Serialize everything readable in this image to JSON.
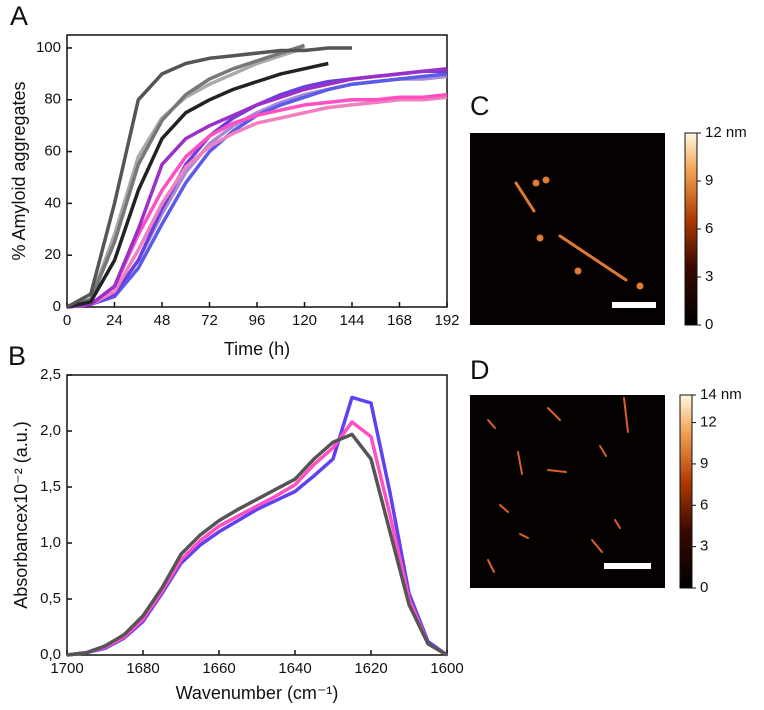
{
  "chart_data": [
    {
      "type": "line",
      "label": "A",
      "x_label": "Time (h)",
      "y_label": "% Amyloid aggregates",
      "x": [
        0,
        12,
        24,
        36,
        48,
        60,
        72,
        84,
        96,
        108,
        120,
        132,
        144,
        156,
        168,
        180,
        192
      ],
      "xlim": [
        0,
        192
      ],
      "xticks": [
        0,
        24,
        48,
        72,
        96,
        120,
        144,
        168,
        192
      ],
      "ylim": [
        0,
        105
      ],
      "yticks": [
        0,
        20,
        40,
        60,
        80,
        100
      ],
      "series": [
        {
          "color": "#a98ad8",
          "values": [
            0,
            1,
            5,
            18,
            36,
            52,
            63,
            70,
            75,
            79,
            82,
            84,
            86,
            87,
            88,
            88,
            89
          ]
        },
        {
          "color": "#5b5be8",
          "values": [
            0,
            1,
            4,
            15,
            32,
            48,
            60,
            68,
            74,
            78,
            81,
            84,
            86,
            87,
            88,
            89,
            90
          ]
        },
        {
          "color": "#6a3fe0",
          "values": [
            0,
            1,
            5,
            18,
            38,
            55,
            66,
            73,
            78,
            82,
            85,
            87,
            88,
            89,
            90,
            91,
            91
          ]
        },
        {
          "color": "#f080c0",
          "values": [
            0,
            1,
            6,
            22,
            40,
            54,
            62,
            67,
            71,
            73,
            75,
            77,
            78,
            79,
            80,
            80,
            81
          ]
        },
        {
          "color": "#ff4fc0",
          "values": [
            0,
            1,
            8,
            28,
            45,
            58,
            66,
            71,
            74,
            76,
            78,
            79,
            80,
            80,
            81,
            81,
            82
          ]
        },
        {
          "color": "#9b30c8",
          "values": [
            0,
            1,
            8,
            30,
            55,
            65,
            70,
            74,
            78,
            81,
            84,
            86,
            88,
            89,
            90,
            91,
            92
          ]
        },
        {
          "color": "#aaaaaa",
          "values": [
            0,
            3,
            28,
            58,
            73,
            81,
            86,
            90,
            94,
            97,
            100,
            null,
            null,
            null,
            null,
            null,
            null
          ]
        },
        {
          "color": "#777777",
          "values": [
            0,
            3,
            25,
            55,
            72,
            82,
            88,
            92,
            95,
            98,
            101,
            null,
            null,
            null,
            null,
            null,
            null
          ]
        },
        {
          "color": "#222222",
          "values": [
            0,
            2,
            18,
            45,
            65,
            75,
            80,
            84,
            87,
            90,
            92,
            94,
            null,
            null,
            null,
            null,
            null
          ]
        },
        {
          "color": "#555555",
          "values": [
            0,
            5,
            40,
            80,
            90,
            94,
            96,
            97,
            98,
            99,
            99,
            100,
            100,
            null,
            null,
            null,
            null
          ]
        }
      ]
    },
    {
      "type": "line",
      "label": "B",
      "x_label": "Wavenumber (cm⁻¹)",
      "y_label": "Absorbancex10⁻² (a.u.)",
      "x": [
        1700,
        1695,
        1690,
        1685,
        1680,
        1675,
        1670,
        1665,
        1660,
        1655,
        1650,
        1645,
        1640,
        1635,
        1630,
        1625,
        1620,
        1615,
        1610,
        1605,
        1600
      ],
      "xlim": [
        1700,
        1600
      ],
      "xticks": [
        1700,
        1680,
        1660,
        1640,
        1620,
        1600
      ],
      "ylim": [
        0,
        2.5
      ],
      "yticks": [
        {
          "value": 0,
          "label": "0,0"
        },
        {
          "value": 0.5,
          "label": "0,5"
        },
        {
          "value": 1,
          "label": "1,0"
        },
        {
          "value": 1.5,
          "label": "1,5"
        },
        {
          "value": 2,
          "label": "2,0"
        },
        {
          "value": 2.5,
          "label": "2,5"
        }
      ],
      "series": [
        {
          "color": "#6040f0",
          "values": [
            0,
            0.02,
            0.06,
            0.15,
            0.3,
            0.55,
            0.82,
            0.98,
            1.1,
            1.2,
            1.3,
            1.38,
            1.46,
            1.6,
            1.75,
            2.3,
            2.25,
            1.45,
            0.55,
            0.12,
            0
          ]
        },
        {
          "color": "#ff4fc0",
          "values": [
            0,
            0.02,
            0.07,
            0.16,
            0.32,
            0.57,
            0.85,
            1.02,
            1.15,
            1.24,
            1.33,
            1.42,
            1.52,
            1.7,
            1.85,
            2.08,
            1.95,
            1.25,
            0.5,
            0.1,
            0
          ]
        },
        {
          "color": "#555555",
          "values": [
            0,
            0.02,
            0.08,
            0.18,
            0.35,
            0.6,
            0.9,
            1.07,
            1.2,
            1.3,
            1.39,
            1.48,
            1.57,
            1.75,
            1.9,
            1.97,
            1.75,
            1.1,
            0.45,
            0.1,
            0
          ]
        }
      ]
    },
    {
      "type": "image",
      "label": "C",
      "clim": [
        0,
        12
      ],
      "cticks": [
        0,
        3,
        6,
        9,
        {
          "value": 12,
          "label": "12 nm"
        }
      ]
    },
    {
      "type": "image",
      "label": "D",
      "clim": [
        0,
        14
      ],
      "cticks": [
        0,
        3,
        6,
        9,
        12,
        {
          "value": 14,
          "label": "14 nm"
        }
      ]
    }
  ]
}
